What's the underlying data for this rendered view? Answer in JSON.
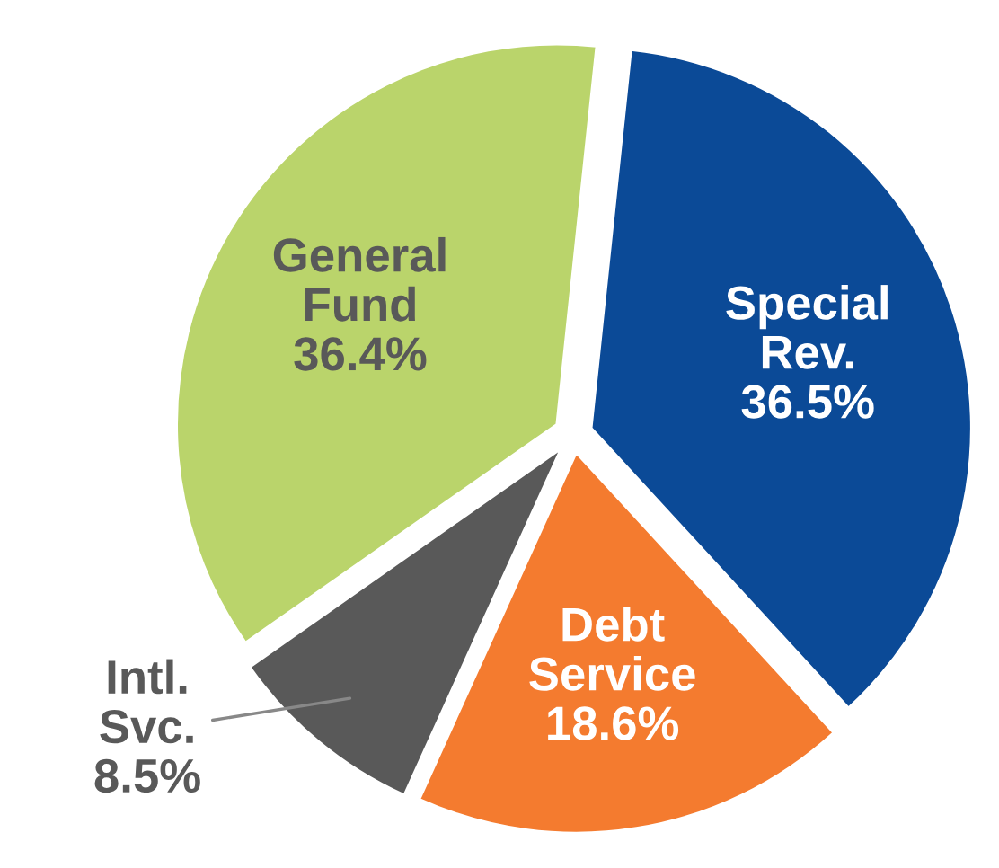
{
  "chart_data": {
    "type": "pie",
    "categories": [
      "Special\nRev.",
      "Debt\nService",
      "Intl.\nSvc.",
      "General\nFund"
    ],
    "values": [
      36.5,
      18.6,
      8.5,
      36.4
    ],
    "value_labels": [
      "36.5%",
      "18.6%",
      "8.5%",
      "36.4%"
    ],
    "colors": [
      "#0b4a97",
      "#f47b2f",
      "#595959",
      "#bad46b"
    ],
    "legend": false
  }
}
